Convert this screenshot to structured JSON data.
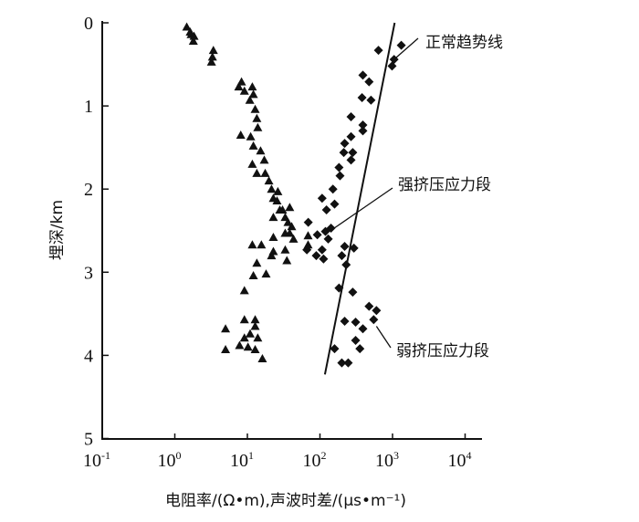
{
  "chart_data": {
    "type": "scatter",
    "title": "",
    "xlabel": "电阻率/(Ω•m),声波时差/(μs•m⁻¹)",
    "ylabel": "埋深/km",
    "xscale": "log",
    "xlim": [
      0.1,
      10000
    ],
    "ylim": [
      0,
      5
    ],
    "y_inverted": true,
    "grid": false,
    "x_ticks": [
      {
        "base": "10",
        "exp": "-1",
        "value": 0.1
      },
      {
        "base": "10",
        "exp": "0",
        "value": 1
      },
      {
        "base": "10",
        "exp": "1",
        "value": 10
      },
      {
        "base": "10",
        "exp": "2",
        "value": 100
      },
      {
        "base": "10",
        "exp": "3",
        "value": 1000
      },
      {
        "base": "10",
        "exp": "4",
        "value": 10000
      }
    ],
    "y_ticks": [
      "0",
      "1",
      "2",
      "3",
      "4",
      "5"
    ],
    "series": [
      {
        "name": "电阻率",
        "marker": "triangle",
        "points": [
          [
            1.46,
            0.05
          ],
          [
            1.68,
            0.14
          ],
          [
            1.8,
            0.22
          ],
          [
            1.63,
            0.11
          ],
          [
            1.84,
            0.16
          ],
          [
            3.4,
            0.33
          ],
          [
            3.3,
            0.41
          ],
          [
            3.2,
            0.47
          ],
          [
            8.3,
            0.71
          ],
          [
            7.6,
            0.77
          ],
          [
            9.1,
            0.82
          ],
          [
            11.7,
            0.77
          ],
          [
            12.1,
            0.86
          ],
          [
            10.8,
            0.93
          ],
          [
            12.8,
            1.04
          ],
          [
            13.5,
            1.15
          ],
          [
            13.9,
            1.26
          ],
          [
            8.1,
            1.35
          ],
          [
            11.1,
            1.37
          ],
          [
            12.1,
            1.48
          ],
          [
            15.2,
            1.54
          ],
          [
            17.1,
            1.65
          ],
          [
            11.7,
            1.7
          ],
          [
            13.5,
            1.81
          ],
          [
            17.6,
            1.81
          ],
          [
            19.8,
            1.9
          ],
          [
            21.5,
            2.0
          ],
          [
            22.8,
            2.11
          ],
          [
            26.3,
            2.03
          ],
          [
            25.6,
            2.14
          ],
          [
            28.0,
            2.25
          ],
          [
            30.5,
            2.25
          ],
          [
            38.3,
            2.22
          ],
          [
            22.8,
            2.34
          ],
          [
            33.2,
            2.34
          ],
          [
            40.8,
            2.45
          ],
          [
            36.3,
            2.4
          ],
          [
            43.2,
            2.6
          ],
          [
            38.3,
            2.53
          ],
          [
            33.2,
            2.53
          ],
          [
            22.8,
            2.58
          ],
          [
            68.6,
            2.56
          ],
          [
            68.6,
            2.67
          ],
          [
            11.7,
            2.67
          ],
          [
            15.6,
            2.67
          ],
          [
            33.2,
            2.73
          ],
          [
            22.8,
            2.75
          ],
          [
            21.5,
            2.8
          ],
          [
            35.0,
            2.86
          ],
          [
            13.5,
            2.89
          ],
          [
            18.1,
            3.02
          ],
          [
            12.1,
            3.04
          ],
          [
            9.1,
            3.22
          ],
          [
            12.8,
            3.57
          ],
          [
            9.1,
            3.57
          ],
          [
            12.8,
            3.65
          ],
          [
            5.0,
            3.68
          ],
          [
            10.9,
            3.74
          ],
          [
            9.1,
            3.79
          ],
          [
            13.9,
            3.79
          ],
          [
            7.8,
            3.88
          ],
          [
            10.2,
            3.9
          ],
          [
            5.0,
            3.93
          ],
          [
            12.8,
            3.93
          ],
          [
            16.1,
            4.04
          ]
        ]
      },
      {
        "name": "声波时差",
        "marker": "diamond",
        "points": [
          [
            1320,
            0.27
          ],
          [
            640,
            0.33
          ],
          [
            1050,
            0.44
          ],
          [
            985,
            0.52
          ],
          [
            390,
            0.63
          ],
          [
            475,
            0.71
          ],
          [
            380,
            0.9
          ],
          [
            505,
            0.93
          ],
          [
            268,
            1.13
          ],
          [
            390,
            1.23
          ],
          [
            390,
            1.3
          ],
          [
            268,
            1.37
          ],
          [
            219,
            1.45
          ],
          [
            213,
            1.56
          ],
          [
            283,
            1.56
          ],
          [
            268,
            1.65
          ],
          [
            183,
            1.74
          ],
          [
            189,
            1.84
          ],
          [
            151,
            2.0
          ],
          [
            107,
            2.11
          ],
          [
            159,
            2.18
          ],
          [
            123,
            2.25
          ],
          [
            69,
            2.4
          ],
          [
            142,
            2.47
          ],
          [
            119,
            2.51
          ],
          [
            92,
            2.55
          ],
          [
            130,
            2.6
          ],
          [
            219,
            2.69
          ],
          [
            294,
            2.71
          ],
          [
            66,
            2.73
          ],
          [
            107,
            2.73
          ],
          [
            89,
            2.8
          ],
          [
            200,
            2.8
          ],
          [
            112,
            2.84
          ],
          [
            230,
            2.91
          ],
          [
            183,
            3.19
          ],
          [
            283,
            3.24
          ],
          [
            475,
            3.41
          ],
          [
            600,
            3.46
          ],
          [
            550,
            3.57
          ],
          [
            219,
            3.59
          ],
          [
            310,
            3.6
          ],
          [
            390,
            3.68
          ],
          [
            310,
            3.82
          ],
          [
            355,
            3.92
          ],
          [
            159,
            3.92
          ],
          [
            200,
            4.09
          ],
          [
            245,
            4.09
          ]
        ]
      }
    ],
    "trend_line": {
      "name": "正常趋势线",
      "points": [
        [
          1070,
          0
        ],
        [
          117,
          4.23
        ]
      ]
    },
    "annotations": [
      {
        "text": "正常趋势线",
        "target": [
          1050,
          0.44
        ]
      },
      {
        "text": "强挤压应力段",
        "target": [
          140,
          2.5
        ]
      },
      {
        "text": "弱挤压应力段",
        "target": [
          600,
          3.65
        ]
      }
    ]
  }
}
